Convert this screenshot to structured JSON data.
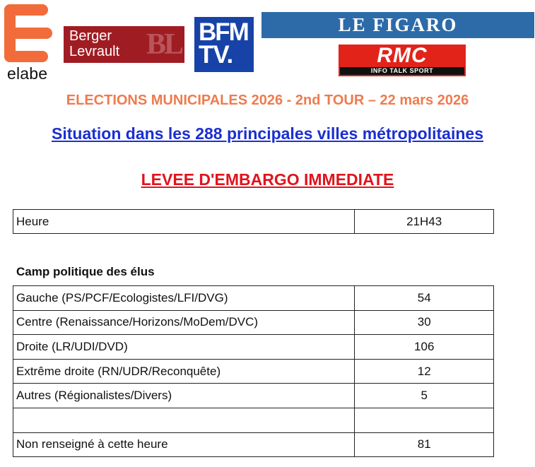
{
  "logos": {
    "elabe": {
      "text": "elabe",
      "color": "#f26b3a"
    },
    "berger_levrault": {
      "line1": "Berger",
      "line2": "Levrault",
      "monogram": "BL",
      "color": "#a01c23"
    },
    "bfm": {
      "line1": "BFM",
      "line2": "TV.",
      "color": "#1743a8"
    },
    "figaro": {
      "text": "LE FIGARO",
      "color": "#2c6ba8"
    },
    "rmc": {
      "text": "RMC",
      "subtitle": "INFO TALK SPORT",
      "color": "#e2231a"
    }
  },
  "headings": {
    "election": "ELECTIONS MUNICIPALES 2026 - 2nd TOUR – 22 mars 2026",
    "situation": "Situation dans les 288 principales villes métropolitaines",
    "embargo": "LEVEE D'EMBARGO IMMEDIATE"
  },
  "time_row": {
    "label": "Heure",
    "value": "21H43"
  },
  "section_label": "Camp politique des élus",
  "rows": [
    {
      "label": "Gauche (PS/PCF/Ecologistes/LFI/DVG)",
      "value": "54"
    },
    {
      "label": "Centre (Renaissance/Horizons/MoDem/DVC)",
      "value": "30"
    },
    {
      "label": "Droite (LR/UDI/DVD)",
      "value": "106"
    },
    {
      "label": "Extrême droite (RN/UDR/Reconquête)",
      "value": "12"
    },
    {
      "label": "Autres (Régionalistes/Divers)",
      "value": "5"
    },
    {
      "label": "",
      "value": ""
    },
    {
      "label": "Non renseigné à cette heure",
      "value": "81"
    }
  ],
  "colors": {
    "election_heading": "#ee7b4e",
    "situation_heading": "#1b2fd0",
    "embargo_heading": "#e0141d"
  }
}
